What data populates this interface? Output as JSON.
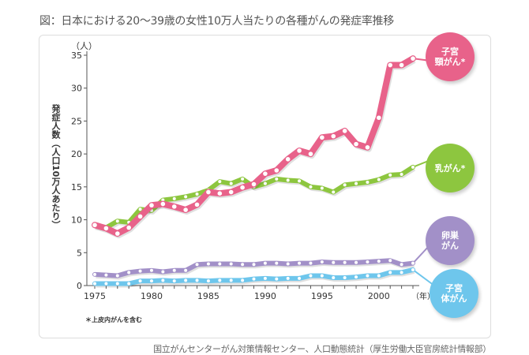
{
  "title": "図：日本における20〜39歳の女性10万人当たりの各種がんの発症率推移",
  "source": "国立がんセンターがん対策情報センター、人口動態統計（厚生労働大臣官房統計情報部）",
  "chart_data": {
    "type": "line",
    "title": "図：日本における20〜39歳の女性10万人当たりの各種がんの発症率推移",
    "ylabel": "発症人数（人口10万人あたり）",
    "yunit": "（人）",
    "xunit": "（年）",
    "note": "＊上皮内がんを含む",
    "xlim": [
      1975,
      2003
    ],
    "ylim": [
      0,
      35
    ],
    "xticks": [
      "1975",
      "1980",
      "1985",
      "1990",
      "1995",
      "2000"
    ],
    "yticks": [
      "0",
      "5",
      "10",
      "15",
      "20",
      "25",
      "30",
      "35"
    ],
    "grid": false,
    "legend": "right (bubble labels at line ends)",
    "x": [
      1975,
      1976,
      1977,
      1978,
      1979,
      1980,
      1981,
      1982,
      1983,
      1984,
      1985,
      1986,
      1987,
      1988,
      1989,
      1990,
      1991,
      1992,
      1993,
      1994,
      1995,
      1996,
      1997,
      1998,
      1999,
      2000,
      2001,
      2002,
      2003
    ],
    "series": [
      {
        "name": "乳がん*",
        "label_lines": [
          "乳がん*"
        ],
        "color": "#8dc63f",
        "values": [
          9.2,
          8.8,
          9.8,
          9.6,
          11.6,
          11.4,
          13.0,
          13.2,
          13.5,
          13.9,
          14.5,
          15.8,
          15.5,
          16.2,
          15.0,
          15.5,
          16.2,
          16.0,
          15.9,
          15.0,
          14.8,
          14.2,
          15.3,
          15.5,
          15.7,
          16.1,
          16.8,
          16.9,
          18.0
        ]
      },
      {
        "name": "卵巣がん",
        "label_lines": [
          "卵巣",
          "がん"
        ],
        "color": "#a290c8",
        "values": [
          1.7,
          1.6,
          1.5,
          2.0,
          2.2,
          2.3,
          2.1,
          2.3,
          2.3,
          3.2,
          3.3,
          3.3,
          3.3,
          3.2,
          3.2,
          3.4,
          3.4,
          3.3,
          3.4,
          3.4,
          3.6,
          3.5,
          3.5,
          3.5,
          3.6,
          3.7,
          3.8,
          3.2,
          3.4
        ]
      },
      {
        "name": "子宮体がん",
        "label_lines": [
          "子宮",
          "体がん"
        ],
        "color": "#6ec6ec",
        "values": [
          0.3,
          0.3,
          0.3,
          0.3,
          0.7,
          0.7,
          0.8,
          0.7,
          0.8,
          0.8,
          0.7,
          0.8,
          0.8,
          0.8,
          1.0,
          1.1,
          1.0,
          1.1,
          1.1,
          1.5,
          1.5,
          1.2,
          1.2,
          1.3,
          1.5,
          1.5,
          2.0,
          2.0,
          2.4
        ]
      },
      {
        "name": "子宮頸がん*",
        "label_lines": [
          "子宮",
          "頸がん*"
        ],
        "color": "#e8628a",
        "values": [
          9.2,
          8.7,
          7.9,
          8.8,
          10.5,
          12.2,
          12.4,
          12.0,
          11.5,
          12.3,
          14.2,
          14.0,
          14.2,
          14.9,
          15.4,
          17.0,
          17.5,
          19.2,
          20.5,
          20.0,
          22.5,
          22.7,
          23.5,
          21.5,
          21.0,
          25.5,
          33.5,
          33.5,
          34.5
        ]
      }
    ]
  }
}
